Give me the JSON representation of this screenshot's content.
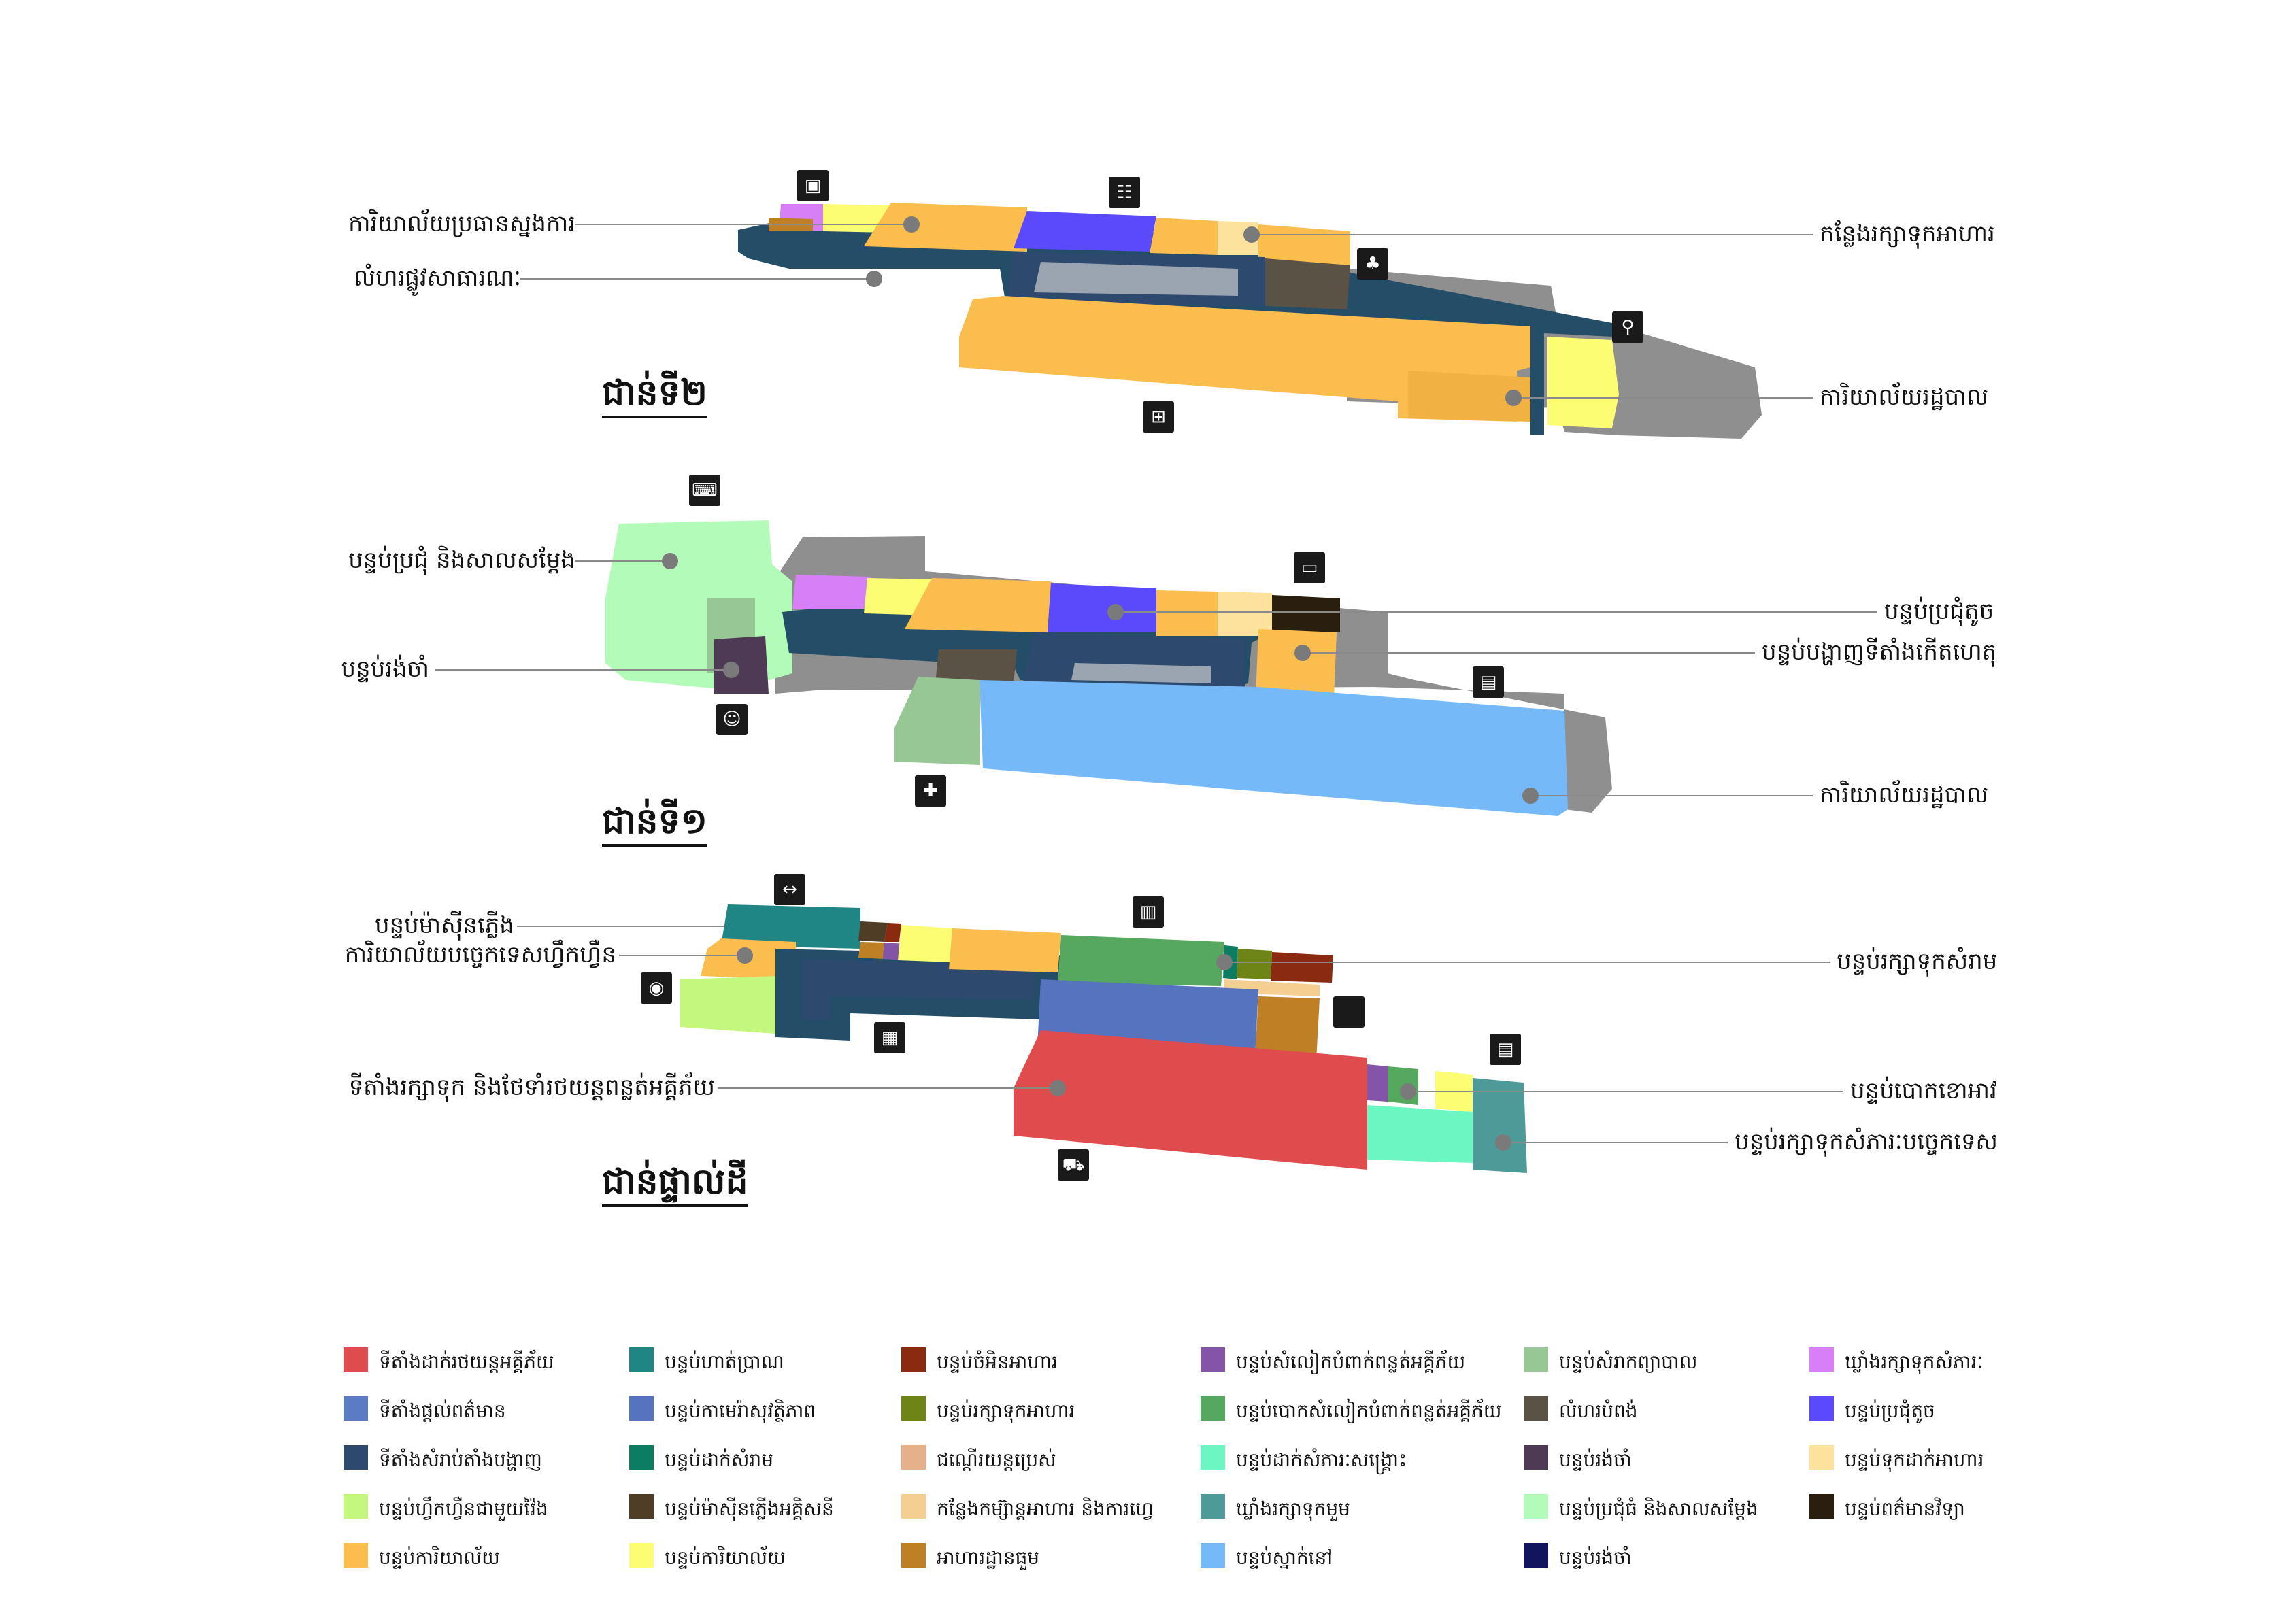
{
  "floors": [
    {
      "title": "ជាន់ទី២",
      "callouts_left": [
        "ការិយាល័យប្រធានស្នងការ",
        "លំហរផ្លូវសាធារណៈ"
      ],
      "callouts_right": [
        "កន្លែងរក្សាទុកអាហារ",
        "ការិយាល័យរដ្ឋបាល"
      ],
      "icons": [
        "box-icon",
        "meeting-icon",
        "tree-icon",
        "toilet-icon",
        "network-icon"
      ]
    },
    {
      "title": "ជាន់ទី១",
      "callouts_left": [
        "បន្ទប់ប្រជុំ និងសាលសម្តែង",
        "បន្ទប់រង់ចាំ"
      ],
      "callouts_right": [
        "បន្ទប់ប្រជុំតូច",
        "បន្ទប់បង្ហាញទីតាំងកើតហេតុ",
        "ការិយាល័យរដ្ឋបាល"
      ],
      "icons": [
        "keyboard-icon",
        "monitor-icon",
        "bed-icon",
        "reception-icon",
        "medical-icon"
      ]
    },
    {
      "title": "ជាន់ផ្ទាល់ដី",
      "callouts_left": [
        "បន្ទប់ម៉ាស៊ីនភ្លើង",
        "ការិយាល័យបច្ចេកទេសហ្វឹកហ្វឺន",
        "ទីតាំងរក្សាទុក និងថែទាំរថយន្តពន្លត់អគ្គីភ័យ"
      ],
      "callouts_right": [
        "បន្ទប់រក្សាទុកសំរាម",
        "បន្ទប់បោកខោអាវ",
        "បន្ទប់រក្សាទុកសំភារៈបច្ចេកទេស"
      ],
      "icons": [
        "dumbbell-icon",
        "book-icon",
        "eye-icon",
        "image-icon",
        "server-icon",
        "truck-icon",
        "blank-square-icon"
      ]
    }
  ],
  "legend": [
    {
      "label": "ទីតាំងដាក់រថយន្តអគ្គីភ័យ",
      "color": "#e04b4e"
    },
    {
      "label": "ទីតាំងផ្តល់ពត៌មាន",
      "color": "#5b7bc4"
    },
    {
      "label": "ទីតាំងសំរាប់តាំងបង្ហាញ",
      "color": "#2d4a6e"
    },
    {
      "label": "បន្ទប់ហ្វឹកហ្វឺនជាមួយវ៉ៃង",
      "color": "#c3f77e"
    },
    {
      "label": "បន្ទប់ការិយាល័យ",
      "color": "#fcbd4f"
    },
    {
      "label": "បន្ទប់ហាត់ប្រាណ",
      "color": "#1f8585"
    },
    {
      "label": "បន្ទប់កាមេរ៉ាសុវត្ថិភាព",
      "color": "#5673c0"
    },
    {
      "label": "បន្ទប់ដាក់សំរាម",
      "color": "#0c7d62"
    },
    {
      "label": "បន្ទប់ម៉ាស៊ីនភ្លើងអគ្គិសនី",
      "color": "#4f3d26"
    },
    {
      "label": "បន្ទប់ការិយាល័យ",
      "color": "#fcfd73"
    },
    {
      "label": "បន្ទប់ចំអិនអាហារ",
      "color": "#8a2a10"
    },
    {
      "label": "បន្ទប់រក្សាទុកអាហារ",
      "color": "#6f8417"
    },
    {
      "label": "ជណ្តើរយន្តប្រេស់",
      "color": "#e5b08a"
    },
    {
      "label": "កន្លែងកម្ស៊ាន្តអាហារ និងការហ្វេ",
      "color": "#f5cf92"
    },
    {
      "label": "អាហារដ្ឋានធួម",
      "color": "#bf7f25"
    },
    {
      "label": "បន្ទប់សំលៀកបំពាក់ពន្លត់អគ្គីភ័យ",
      "color": "#8354a7"
    },
    {
      "label": "បន្ទប់បោកសំលៀកបំពាក់ពន្លត់អគ្គីភ័យ",
      "color": "#56a85e"
    },
    {
      "label": "បន្ទប់ដាក់សំភារៈសង្គ្រោះ",
      "color": "#6cf7c2"
    },
    {
      "label": "ឃ្លាំងរក្សាទុកមួម",
      "color": "#4d9a98"
    },
    {
      "label": "បន្ទប់ស្នាក់នៅ",
      "color": "#75b9f9"
    },
    {
      "label": "បន្ទប់សំរាកព្យាបាល",
      "color": "#98c796"
    },
    {
      "label": "លំហរបំពង់",
      "color": "#5b5246"
    },
    {
      "label": "បន្ទប់រង់ចាំ",
      "color": "#4f3a55"
    },
    {
      "label": "បន្ទប់ប្រជុំធំ និងសាលសម្តែង",
      "color": "#b2fbb8"
    },
    {
      "label": "បន្ទប់រង់ចាំ",
      "color": "#12155e"
    },
    {
      "label": "ឃ្លាំងរក្សាទុកសំភារៈ",
      "color": "#d77ff7"
    },
    {
      "label": "បន្ទប់ប្រជុំតូច",
      "color": "#5a4afb"
    },
    {
      "label": "បន្ទប់ទុកដាក់អាហារ",
      "color": "#fce29c"
    },
    {
      "label": "បន្ទប់ពត៌មានវិទ្យា",
      "color": "#2a1f0f"
    }
  ],
  "colors": {
    "corridor": "#244d68",
    "gray_mass": "#8f8f8f",
    "leader_line": "#8a8a8a",
    "dot": "#7a7a7a"
  }
}
